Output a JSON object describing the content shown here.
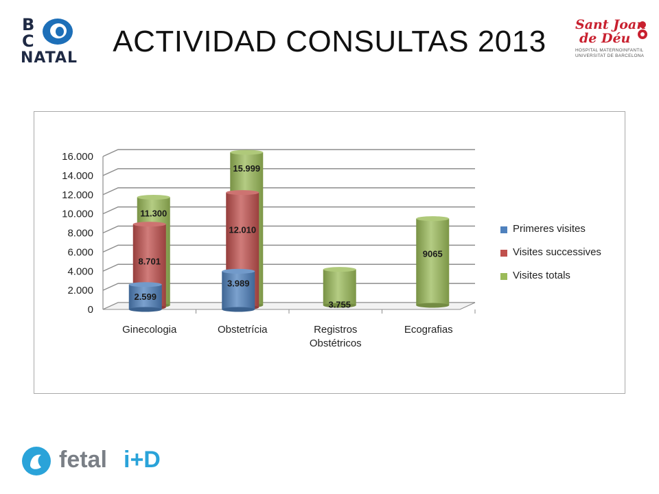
{
  "header": {
    "title": "ACTIVIDAD CONSULTAS 2013"
  },
  "logos": {
    "bcnatal": {
      "line1": "B",
      "line2": "C",
      "line3": "NATAL"
    },
    "sant_joan": {
      "line1": "Sant Joan",
      "line2": "de Déu",
      "line3": "HOSPITAL MATERNOINFANTIL",
      "line4": "UNIVERSITAT DE BARCELONA"
    },
    "fetal": {
      "word1": "fetal",
      "word2": "i+D"
    }
  },
  "colors": {
    "primeres": "#4f81bd",
    "successives": "#c0504d",
    "totals": "#9bbb59"
  },
  "chart_data": {
    "type": "bar",
    "style": "3d-cylinder",
    "categories": [
      "Ginecologia",
      "Obstetrícia",
      "Registros Obstétricos",
      "Ecografias"
    ],
    "category_lines": [
      [
        "Ginecologia"
      ],
      [
        "Obstetrícia"
      ],
      [
        "Registros",
        "Obstétricos"
      ],
      [
        "Ecografias"
      ]
    ],
    "series": [
      {
        "name": "Primeres visites",
        "values": [
          2599,
          3989,
          null,
          null
        ],
        "labels": [
          "2.599",
          "3.989",
          "",
          ""
        ]
      },
      {
        "name": "Visites successives",
        "values": [
          8701,
          12010,
          null,
          null
        ],
        "labels": [
          "8.701",
          "12.010",
          "",
          ""
        ]
      },
      {
        "name": "Visites totals",
        "values": [
          11300,
          15999,
          3755,
          9065
        ],
        "labels": [
          "11.300",
          "15.999",
          "3.755",
          "9065"
        ]
      }
    ],
    "y_ticks": [
      "0",
      "2.000",
      "4.000",
      "6.000",
      "8.000",
      "10.000",
      "12.000",
      "14.000",
      "16.000"
    ],
    "ylim": [
      0,
      16000
    ],
    "grid": true,
    "legend_position": "right"
  }
}
